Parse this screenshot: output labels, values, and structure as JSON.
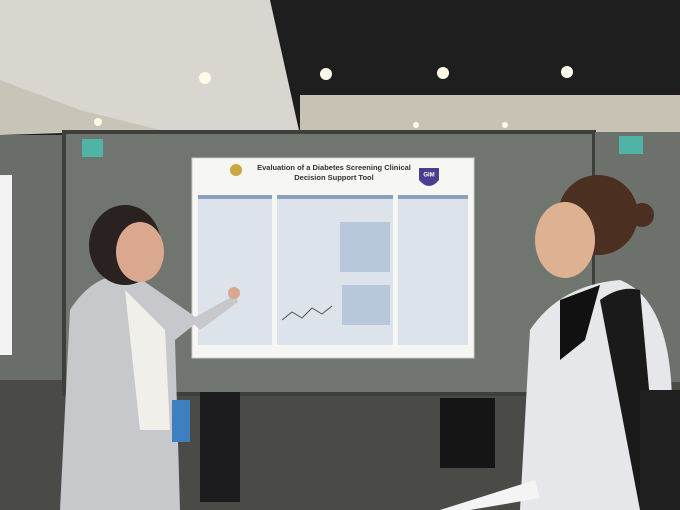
{
  "poster": {
    "title_lines": [
      "Evaluation of a Diabetes Screening Clinical",
      "Decision Support Tool"
    ],
    "logo": "GIM"
  }
}
